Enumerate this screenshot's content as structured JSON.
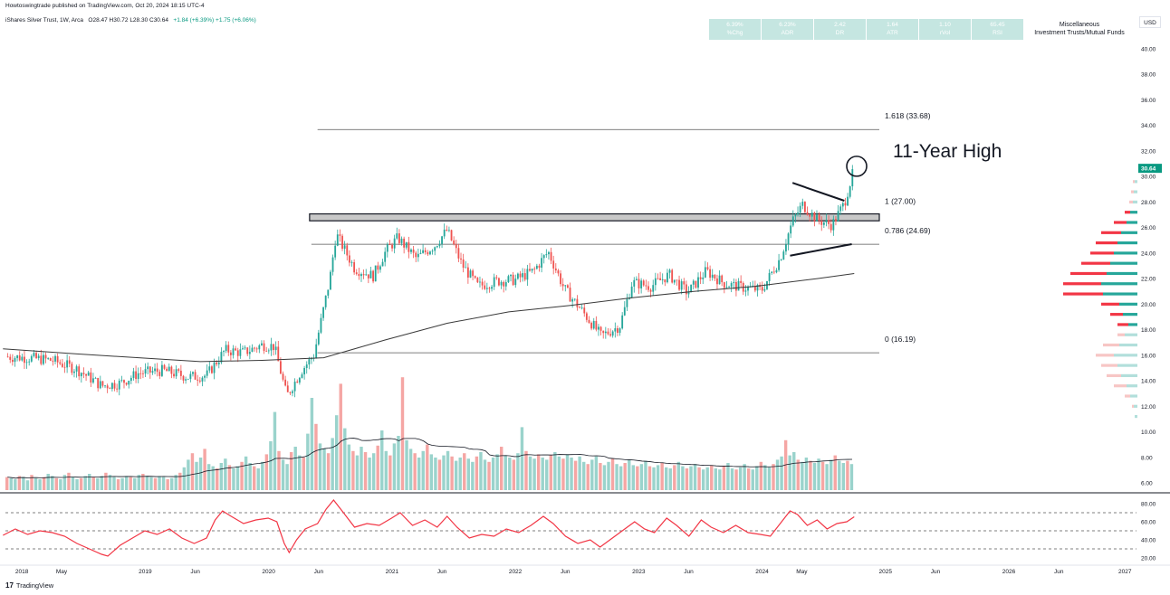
{
  "header": {
    "published": "Howtoswingtrade published on TradingView.com, Oct 20, 2024 18:15 UTC-4",
    "symbol": "iShares Silver Trust, 1W, Arca",
    "ohlc": "O28.47 H30.72 L28.30 C30.64",
    "change": "+1.84 (+6.39%) +1.75 (+6.06%)"
  },
  "metrics": [
    {
      "value": "6.39%",
      "label": "%Chg"
    },
    {
      "value": "6.23%",
      "label": "ADR"
    },
    {
      "value": "2.42",
      "label": "DR"
    },
    {
      "value": "1.64",
      "label": "ATR"
    },
    {
      "value": "1.10",
      "label": "rVol"
    },
    {
      "value": "65.45",
      "label": "RSI"
    }
  ],
  "industry": {
    "line1": "Miscellaneous",
    "line2": "Investment Trusts/Mutual Funds"
  },
  "currency": "USD",
  "footer": {
    "brand": "TradingView"
  },
  "colors": {
    "up": "#26a69a",
    "down": "#ef5350",
    "sma": "#3a3a3a",
    "rsi": "#f23645",
    "vp_up": "#26a69a",
    "vp_down": "#f23645"
  },
  "chart_data": {
    "type": "candlestick",
    "price_axis": {
      "min": 5.0,
      "max": 41.5,
      "ticks": [
        6,
        8,
        10,
        12,
        14,
        16,
        18,
        20,
        22,
        24,
        26,
        28,
        30,
        32,
        34,
        36,
        38,
        40
      ],
      "tick_labels": [
        "6.00",
        "8.00",
        "10.00",
        "12.00",
        "14.00",
        "16.00",
        "18.00",
        "20.00",
        "22.00",
        "24.00",
        "26.00",
        "28.00",
        "30.00",
        "32.00",
        "34.00",
        "36.00",
        "38.00",
        "40.00"
      ]
    },
    "last_price": {
      "value": 30.64,
      "label": "30.64"
    },
    "x_axis": {
      "labels": [
        {
          "text": "2018",
          "t": 2018.0
        },
        {
          "text": "May",
          "t": 2018.33
        },
        {
          "text": "2019",
          "t": 2019.0
        },
        {
          "text": "Jun",
          "t": 2019.42
        },
        {
          "text": "2020",
          "t": 2020.0
        },
        {
          "text": "Jun",
          "t": 2020.42
        },
        {
          "text": "2021",
          "t": 2021.0
        },
        {
          "text": "Jun",
          "t": 2021.42
        },
        {
          "text": "2022",
          "t": 2022.0
        },
        {
          "text": "Jun",
          "t": 2022.42
        },
        {
          "text": "2023",
          "t": 2023.0
        },
        {
          "text": "Jun",
          "t": 2023.42
        },
        {
          "text": "2024",
          "t": 2024.0
        },
        {
          "text": "May",
          "t": 2024.33
        },
        {
          "text": "2025",
          "t": 2025.0
        },
        {
          "text": "Jun",
          "t": 2025.42
        },
        {
          "text": "2026",
          "t": 2026.0
        },
        {
          "text": "Jun",
          "t": 2026.42
        },
        {
          "text": "2027",
          "t": 2027.0
        }
      ]
    },
    "price_path": [
      [
        2017.9,
        15.9
      ],
      [
        2018.1,
        15.8
      ],
      [
        2018.3,
        15.6
      ],
      [
        2018.5,
        14.9
      ],
      [
        2018.7,
        13.6
      ],
      [
        2018.85,
        13.8
      ],
      [
        2019.0,
        14.6
      ],
      [
        2019.2,
        14.8
      ],
      [
        2019.4,
        14.3
      ],
      [
        2019.55,
        14.4
      ],
      [
        2019.7,
        16.4
      ],
      [
        2019.85,
        16.2
      ],
      [
        2020.0,
        16.8
      ],
      [
        2020.1,
        16.7
      ],
      [
        2020.2,
        12.8
      ],
      [
        2020.32,
        14.8
      ],
      [
        2020.42,
        16.0
      ],
      [
        2020.55,
        22.0
      ],
      [
        2020.6,
        25.5
      ],
      [
        2020.75,
        22.8
      ],
      [
        2020.9,
        22.2
      ],
      [
        2021.0,
        24.1
      ],
      [
        2021.1,
        25.2
      ],
      [
        2021.25,
        23.6
      ],
      [
        2021.4,
        24.6
      ],
      [
        2021.5,
        25.8
      ],
      [
        2021.62,
        23.1
      ],
      [
        2021.75,
        21.4
      ],
      [
        2021.9,
        21.8
      ],
      [
        2022.05,
        21.9
      ],
      [
        2022.2,
        22.6
      ],
      [
        2022.32,
        24.1
      ],
      [
        2022.45,
        21.2
      ],
      [
        2022.6,
        19.4
      ],
      [
        2022.75,
        17.5
      ],
      [
        2022.9,
        18.3
      ],
      [
        2023.0,
        21.7
      ],
      [
        2023.15,
        21.4
      ],
      [
        2023.3,
        22.3
      ],
      [
        2023.45,
        20.9
      ],
      [
        2023.6,
        22.6
      ],
      [
        2023.75,
        21.6
      ],
      [
        2023.9,
        21.3
      ],
      [
        2024.05,
        21.1
      ],
      [
        2024.2,
        23.6
      ],
      [
        2024.3,
        26.5
      ],
      [
        2024.38,
        27.8
      ],
      [
        2024.5,
        26.6
      ],
      [
        2024.62,
        26.2
      ],
      [
        2024.72,
        27.9
      ],
      [
        2024.8,
        30.64
      ]
    ],
    "sma_path": [
      [
        2017.9,
        16.5
      ],
      [
        2018.5,
        16.1
      ],
      [
        2019.0,
        15.8
      ],
      [
        2019.5,
        15.5
      ],
      [
        2020.0,
        15.6
      ],
      [
        2020.5,
        15.8
      ],
      [
        2021.0,
        17.2
      ],
      [
        2021.5,
        18.5
      ],
      [
        2022.0,
        19.4
      ],
      [
        2022.5,
        19.9
      ],
      [
        2023.0,
        20.5
      ],
      [
        2023.5,
        21.0
      ],
      [
        2024.0,
        21.4
      ],
      [
        2024.5,
        22.0
      ],
      [
        2024.8,
        22.4
      ]
    ],
    "horizontal_levels": [
      {
        "price": 33.68,
        "label": "1.618 (33.68)"
      },
      {
        "price": 27.0,
        "label": "1 (27.00)"
      },
      {
        "price": 24.69,
        "label": "0.786 (24.69)"
      },
      {
        "price": 16.19,
        "label": "0 (16.19)"
      }
    ],
    "resistance_zone": {
      "from_t": 2020.4,
      "to_t": 2024.95,
      "low": 26.6,
      "high": 27.0
    },
    "triangle": {
      "upper": [
        [
          2024.3,
          29.5
        ],
        [
          2024.72,
          28.1
        ]
      ],
      "lower": [
        [
          2024.28,
          23.8
        ],
        [
          2024.78,
          24.7
        ]
      ]
    },
    "highlight_circle": {
      "t": 2024.82,
      "price": 30.8
    },
    "annotation": {
      "text": "11-Year High"
    },
    "volume_profile": [
      {
        "price": 11.2,
        "up": 3,
        "down": 0
      },
      {
        "price": 12.0,
        "up": 4,
        "down": 2
      },
      {
        "price": 12.8,
        "up": 8,
        "down": 6
      },
      {
        "price": 13.6,
        "up": 12,
        "down": 14
      },
      {
        "price": 14.4,
        "up": 18,
        "down": 16
      },
      {
        "price": 15.2,
        "up": 22,
        "down": 18
      },
      {
        "price": 16.0,
        "up": 26,
        "down": 20
      },
      {
        "price": 16.8,
        "up": 20,
        "down": 18
      },
      {
        "price": 17.6,
        "up": 14,
        "down": 8
      },
      {
        "price": 18.4,
        "up": 10,
        "down": 12
      },
      {
        "price": 19.2,
        "up": 16,
        "down": 14
      },
      {
        "price": 20.0,
        "up": 20,
        "down": 20
      },
      {
        "price": 20.8,
        "up": 38,
        "down": 44
      },
      {
        "price": 21.6,
        "up": 40,
        "down": 42
      },
      {
        "price": 22.4,
        "up": 34,
        "down": 40
      },
      {
        "price": 23.2,
        "up": 30,
        "down": 32
      },
      {
        "price": 24.0,
        "up": 26,
        "down": 26
      },
      {
        "price": 24.8,
        "up": 22,
        "down": 24
      },
      {
        "price": 25.6,
        "up": 18,
        "down": 22
      },
      {
        "price": 26.4,
        "up": 12,
        "down": 14
      },
      {
        "price": 27.2,
        "up": 8,
        "down": 6
      },
      {
        "price": 28.0,
        "up": 5,
        "down": 4
      },
      {
        "price": 28.8,
        "up": 4,
        "down": 3
      },
      {
        "price": 29.6,
        "up": 3,
        "down": 2
      }
    ],
    "volume": {
      "bars": [
        1.2,
        1.1,
        1.0,
        1.3,
        1.2,
        0.9,
        1.4,
        1.1,
        1.0,
        1.2,
        1.5,
        1.3,
        1.1,
        1.0,
        1.4,
        1.6,
        1.2,
        1.0,
        1.1,
        1.3,
        1.5,
        1.2,
        1.1,
        1.3,
        1.6,
        1.4,
        1.2,
        1.0,
        1.1,
        1.3,
        1.2,
        1.1,
        1.4,
        1.5,
        1.3,
        1.2,
        1.1,
        1.3,
        1.2,
        1.0,
        1.1,
        1.4,
        1.6,
        2.1,
        2.8,
        3.4,
        2.6,
        3.0,
        3.8,
        2.4,
        2.2,
        2.0,
        2.5,
        2.9,
        2.3,
        2.0,
        2.2,
        2.6,
        3.1,
        2.5,
        2.2,
        2.0,
        2.6,
        3.3,
        4.5,
        7.2,
        3.6,
        2.8,
        2.4,
        3.5,
        4.0,
        3.2,
        3.0,
        5.2,
        8.5,
        6.1,
        4.3,
        3.8,
        3.4,
        4.8,
        6.9,
        9.8,
        5.7,
        4.2,
        3.6,
        3.2,
        4.0,
        3.5,
        3.0,
        3.4,
        4.1,
        5.5,
        3.6,
        3.2,
        4.3,
        5.0,
        10.4,
        4.6,
        3.8,
        3.4,
        3.0,
        3.6,
        4.2,
        3.3,
        3.0,
        2.8,
        3.2,
        3.6,
        3.1,
        2.7,
        3.0,
        3.4,
        2.9,
        2.6,
        3.1,
        3.5,
        2.8,
        2.6,
        3.0,
        3.3,
        4.0,
        3.2,
        3.0,
        2.8,
        3.4,
        5.8,
        3.6,
        3.1,
        2.9,
        3.3,
        3.0,
        2.8,
        3.2,
        3.5,
        3.1,
        2.9,
        3.3,
        3.0,
        2.7,
        3.1,
        2.6,
        2.4,
        2.8,
        3.1,
        2.5,
        2.3,
        2.6,
        2.9,
        2.4,
        2.2,
        2.5,
        2.8,
        2.3,
        2.2,
        2.4,
        2.7,
        2.2,
        2.1,
        2.3,
        2.5,
        2.1,
        2.0,
        2.3,
        2.6,
        2.2,
        2.0,
        2.2,
        2.4,
        2.1,
        1.9,
        2.1,
        2.3,
        2.0,
        1.9,
        2.2,
        2.5,
        2.0,
        1.9,
        2.1,
        2.4,
        2.0,
        1.9,
        2.2,
        2.6,
        2.3,
        2.1,
        2.4,
        2.8,
        3.1,
        4.6,
        3.2,
        3.5,
        2.8,
        2.6,
        3.0,
        2.7,
        2.5,
        2.9,
        2.6,
        2.4,
        2.8,
        3.2,
        2.7,
        2.5,
        2.7,
        2.4
      ]
    },
    "rsi": {
      "axis": {
        "min": 15,
        "max": 90,
        "ticks": [
          20,
          40,
          60,
          80
        ],
        "tick_labels": [
          "20.00",
          "40.00",
          "60.00",
          "80.00"
        ]
      },
      "levels": [
        70,
        50,
        30
      ],
      "path": [
        [
          2017.9,
          45
        ],
        [
          2018.0,
          52
        ],
        [
          2018.1,
          46
        ],
        [
          2018.2,
          50
        ],
        [
          2018.3,
          48
        ],
        [
          2018.4,
          44
        ],
        [
          2018.5,
          36
        ],
        [
          2018.6,
          30
        ],
        [
          2018.7,
          24
        ],
        [
          2018.75,
          22
        ],
        [
          2018.85,
          34
        ],
        [
          2018.95,
          42
        ],
        [
          2019.05,
          50
        ],
        [
          2019.15,
          46
        ],
        [
          2019.25,
          52
        ],
        [
          2019.35,
          42
        ],
        [
          2019.45,
          36
        ],
        [
          2019.55,
          42
        ],
        [
          2019.62,
          62
        ],
        [
          2019.68,
          72
        ],
        [
          2019.75,
          66
        ],
        [
          2019.85,
          58
        ],
        [
          2019.95,
          62
        ],
        [
          2020.05,
          64
        ],
        [
          2020.12,
          60
        ],
        [
          2020.18,
          36
        ],
        [
          2020.22,
          26
        ],
        [
          2020.28,
          40
        ],
        [
          2020.35,
          52
        ],
        [
          2020.45,
          58
        ],
        [
          2020.52,
          74
        ],
        [
          2020.58,
          84
        ],
        [
          2020.66,
          70
        ],
        [
          2020.75,
          54
        ],
        [
          2020.85,
          58
        ],
        [
          2020.95,
          56
        ],
        [
          2021.05,
          64
        ],
        [
          2021.12,
          70
        ],
        [
          2021.22,
          56
        ],
        [
          2021.32,
          62
        ],
        [
          2021.42,
          54
        ],
        [
          2021.5,
          66
        ],
        [
          2021.58,
          54
        ],
        [
          2021.68,
          42
        ],
        [
          2021.78,
          46
        ],
        [
          2021.88,
          44
        ],
        [
          2021.98,
          52
        ],
        [
          2022.08,
          48
        ],
        [
          2022.18,
          56
        ],
        [
          2022.28,
          66
        ],
        [
          2022.36,
          58
        ],
        [
          2022.46,
          44
        ],
        [
          2022.56,
          36
        ],
        [
          2022.66,
          40
        ],
        [
          2022.74,
          32
        ],
        [
          2022.82,
          40
        ],
        [
          2022.92,
          50
        ],
        [
          2023.02,
          60
        ],
        [
          2023.1,
          52
        ],
        [
          2023.18,
          48
        ],
        [
          2023.28,
          64
        ],
        [
          2023.36,
          56
        ],
        [
          2023.46,
          44
        ],
        [
          2023.56,
          62
        ],
        [
          2023.64,
          54
        ],
        [
          2023.74,
          48
        ],
        [
          2023.84,
          56
        ],
        [
          2023.94,
          48
        ],
        [
          2024.04,
          46
        ],
        [
          2024.12,
          44
        ],
        [
          2024.2,
          58
        ],
        [
          2024.28,
          72
        ],
        [
          2024.34,
          68
        ],
        [
          2024.42,
          56
        ],
        [
          2024.5,
          62
        ],
        [
          2024.58,
          52
        ],
        [
          2024.66,
          58
        ],
        [
          2024.74,
          60
        ],
        [
          2024.8,
          65.45
        ]
      ]
    }
  }
}
